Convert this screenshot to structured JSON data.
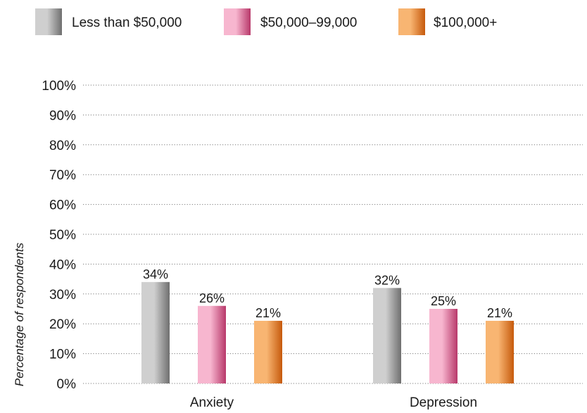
{
  "chart_data": {
    "type": "bar",
    "title": "",
    "xlabel": "",
    "ylabel": "Percentage of respondents",
    "ylim": [
      0,
      100
    ],
    "yticks": [
      "0%",
      "10%",
      "20%",
      "30%",
      "40%",
      "50%",
      "60%",
      "70%",
      "80%",
      "90%",
      "100%"
    ],
    "grid": true,
    "legend_position": "top-left",
    "categories": [
      "Anxiety",
      "Depression"
    ],
    "series": [
      {
        "name": "Less than $50,000",
        "values": [
          34,
          32
        ],
        "labels": [
          "34%",
          "32%"
        ],
        "colors": [
          "#cfcfcf",
          "#6f6f6f"
        ]
      },
      {
        "name": "$50,000–99,000",
        "values": [
          26,
          25
        ],
        "labels": [
          "26%",
          "25%"
        ],
        "colors": [
          "#f7b6cf",
          "#b8386a"
        ]
      },
      {
        "name": "$100,000+",
        "values": [
          21,
          21
        ],
        "labels": [
          "21%",
          "21%"
        ],
        "colors": [
          "#f8b572",
          "#c65a0c"
        ]
      }
    ]
  }
}
